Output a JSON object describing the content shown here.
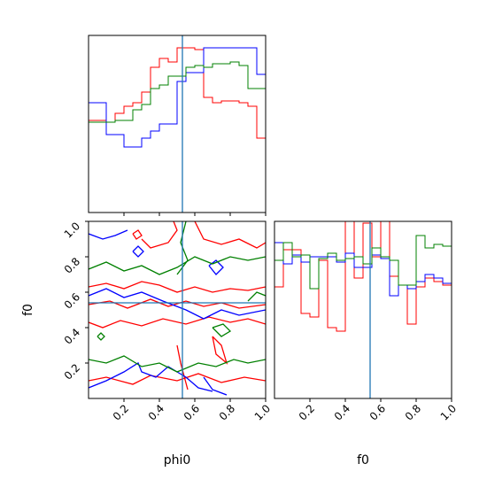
{
  "chart_data": {
    "type": "corner",
    "colors": {
      "red": "#ff0000",
      "blue": "#0000ff",
      "green": "#008000",
      "truth": "#1f77b4"
    },
    "truth": {
      "phi0": 0.53,
      "f0": 0.54
    },
    "labels": {
      "phi0": "phi0",
      "f0": "f0"
    },
    "ticks": {
      "values": [
        0.2,
        0.4,
        0.6,
        0.8,
        1.0
      ],
      "text": [
        "0.2",
        "0.4",
        "0.6",
        "0.8",
        "1.0"
      ]
    },
    "xlim": [
      0,
      1
    ],
    "ylim": [
      0,
      1
    ],
    "hist_phi0": {
      "bin_edges": [
        0,
        0.05,
        0.1,
        0.15,
        0.2,
        0.25,
        0.3,
        0.35,
        0.4,
        0.45,
        0.5,
        0.55,
        0.6,
        0.65,
        0.7,
        0.75,
        0.8,
        0.85,
        0.9,
        0.95,
        1.0
      ],
      "ymax": 1.0,
      "series": [
        {
          "color": "red",
          "values": [
            0.52,
            0.52,
            0.51,
            0.56,
            0.6,
            0.62,
            0.68,
            0.82,
            0.87,
            0.85,
            0.93,
            0.93,
            0.92,
            0.65,
            0.62,
            0.63,
            0.63,
            0.62,
            0.6,
            0.42
          ]
        },
        {
          "color": "blue",
          "values": [
            0.62,
            0.62,
            0.44,
            0.44,
            0.37,
            0.37,
            0.42,
            0.46,
            0.5,
            0.5,
            0.74,
            0.79,
            0.79,
            0.93,
            0.93,
            0.93,
            0.93,
            0.93,
            0.93,
            0.78
          ]
        },
        {
          "color": "green",
          "values": [
            0.51,
            0.51,
            0.51,
            0.52,
            0.52,
            0.58,
            0.61,
            0.7,
            0.72,
            0.77,
            0.77,
            0.82,
            0.83,
            0.82,
            0.84,
            0.84,
            0.85,
            0.83,
            0.7,
            0.7
          ]
        }
      ]
    },
    "hist_f0": {
      "bin_edges": [
        0,
        0.05,
        0.1,
        0.15,
        0.2,
        0.25,
        0.3,
        0.35,
        0.4,
        0.45,
        0.5,
        0.55,
        0.6,
        0.65,
        0.7,
        0.75,
        0.8,
        0.85,
        0.9,
        0.95,
        1.0
      ],
      "ymax": 1.0,
      "series": [
        {
          "color": "red",
          "values": [
            0.63,
            0.84,
            0.84,
            0.48,
            0.46,
            0.78,
            0.4,
            0.38,
            1.0,
            0.68,
            0.99,
            0.8,
            1.0,
            0.69,
            0.64,
            0.42,
            0.63,
            0.68,
            0.66,
            0.64
          ]
        },
        {
          "color": "blue",
          "values": [
            0.88,
            0.76,
            0.81,
            0.77,
            0.8,
            0.8,
            0.8,
            0.77,
            0.82,
            0.74,
            0.74,
            0.81,
            0.79,
            0.58,
            0.64,
            0.62,
            0.66,
            0.7,
            0.68,
            0.65
          ]
        },
        {
          "color": "green",
          "values": [
            0.78,
            0.88,
            0.8,
            0.81,
            0.62,
            0.79,
            0.82,
            0.78,
            0.79,
            0.8,
            0.76,
            0.85,
            0.8,
            0.78,
            0.64,
            0.64,
            0.92,
            0.85,
            0.87,
            0.86
          ]
        }
      ]
    },
    "contour_phi0_f0": {
      "series": [
        {
          "color": "red",
          "paths": [
            [
              [
                0.0,
                0.63
              ],
              [
                0.1,
                0.65
              ],
              [
                0.2,
                0.62
              ],
              [
                0.3,
                0.66
              ],
              [
                0.4,
                0.64
              ],
              [
                0.5,
                0.6
              ],
              [
                0.6,
                0.63
              ],
              [
                0.7,
                0.6
              ],
              [
                0.8,
                0.62
              ],
              [
                0.9,
                0.61
              ],
              [
                1.0,
                0.63
              ]
            ],
            [
              [
                0.0,
                0.53
              ],
              [
                0.12,
                0.55
              ],
              [
                0.22,
                0.51
              ],
              [
                0.35,
                0.56
              ],
              [
                0.45,
                0.52
              ],
              [
                0.55,
                0.55
              ],
              [
                0.65,
                0.52
              ],
              [
                0.75,
                0.54
              ],
              [
                0.85,
                0.51
              ],
              [
                1.0,
                0.53
              ]
            ],
            [
              [
                0.0,
                0.43
              ],
              [
                0.08,
                0.4
              ],
              [
                0.18,
                0.44
              ],
              [
                0.3,
                0.41
              ],
              [
                0.42,
                0.45
              ],
              [
                0.55,
                0.42
              ],
              [
                0.68,
                0.46
              ],
              [
                0.8,
                0.43
              ],
              [
                0.9,
                0.45
              ],
              [
                1.0,
                0.42
              ]
            ],
            [
              [
                0.0,
                0.1
              ],
              [
                0.1,
                0.12
              ],
              [
                0.25,
                0.08
              ],
              [
                0.35,
                0.13
              ],
              [
                0.5,
                0.1
              ],
              [
                0.62,
                0.14
              ],
              [
                0.75,
                0.09
              ],
              [
                0.88,
                0.12
              ],
              [
                1.0,
                0.1
              ]
            ],
            [
              [
                0.6,
                1.0
              ],
              [
                0.65,
                0.9
              ],
              [
                0.75,
                0.87
              ],
              [
                0.85,
                0.9
              ],
              [
                0.95,
                0.85
              ],
              [
                1.0,
                0.88
              ]
            ],
            [
              [
                0.3,
                0.9
              ],
              [
                0.35,
                0.85
              ],
              [
                0.45,
                0.88
              ],
              [
                0.5,
                0.95
              ],
              [
                0.48,
                1.0
              ]
            ],
            [
              [
                0.5,
                0.3
              ],
              [
                0.52,
                0.2
              ],
              [
                0.56,
                0.05
              ]
            ],
            [
              [
                0.7,
                0.35
              ],
              [
                0.72,
                0.25
              ],
              [
                0.78,
                0.2
              ],
              [
                0.75,
                0.3
              ],
              [
                0.7,
                0.35
              ]
            ],
            [
              [
                0.25,
                0.93
              ],
              [
                0.28,
                0.95
              ],
              [
                0.3,
                0.92
              ],
              [
                0.27,
                0.9
              ],
              [
                0.25,
                0.93
              ]
            ]
          ]
        },
        {
          "color": "blue",
          "paths": [
            [
              [
                0.0,
                0.58
              ],
              [
                0.1,
                0.62
              ],
              [
                0.2,
                0.57
              ],
              [
                0.3,
                0.6
              ],
              [
                0.42,
                0.55
              ],
              [
                0.55,
                0.5
              ],
              [
                0.65,
                0.45
              ],
              [
                0.75,
                0.5
              ],
              [
                0.85,
                0.47
              ],
              [
                1.0,
                0.5
              ]
            ],
            [
              [
                0.0,
                0.06
              ],
              [
                0.1,
                0.1
              ],
              [
                0.2,
                0.15
              ],
              [
                0.28,
                0.2
              ],
              [
                0.3,
                0.15
              ],
              [
                0.38,
                0.12
              ],
              [
                0.45,
                0.18
              ],
              [
                0.55,
                0.12
              ],
              [
                0.62,
                0.06
              ],
              [
                0.7,
                0.04
              ]
            ],
            [
              [
                0.0,
                0.93
              ],
              [
                0.08,
                0.9
              ],
              [
                0.15,
                0.92
              ],
              [
                0.22,
                0.95
              ]
            ],
            [
              [
                0.65,
                0.12
              ],
              [
                0.7,
                0.05
              ],
              [
                0.78,
                0.02
              ]
            ],
            [
              [
                0.68,
                0.75
              ],
              [
                0.72,
                0.7
              ],
              [
                0.76,
                0.74
              ],
              [
                0.72,
                0.78
              ],
              [
                0.68,
                0.75
              ]
            ],
            [
              [
                0.25,
                0.83
              ],
              [
                0.28,
                0.86
              ],
              [
                0.31,
                0.83
              ],
              [
                0.28,
                0.8
              ],
              [
                0.25,
                0.83
              ]
            ]
          ]
        },
        {
          "color": "green",
          "paths": [
            [
              [
                0.0,
                0.73
              ],
              [
                0.1,
                0.77
              ],
              [
                0.2,
                0.72
              ],
              [
                0.3,
                0.75
              ],
              [
                0.4,
                0.7
              ],
              [
                0.5,
                0.74
              ],
              [
                0.6,
                0.8
              ],
              [
                0.7,
                0.76
              ],
              [
                0.8,
                0.8
              ],
              [
                0.9,
                0.78
              ],
              [
                1.0,
                0.8
              ]
            ],
            [
              [
                0.0,
                0.22
              ],
              [
                0.1,
                0.2
              ],
              [
                0.2,
                0.24
              ],
              [
                0.3,
                0.18
              ],
              [
                0.4,
                0.2
              ],
              [
                0.5,
                0.15
              ],
              [
                0.62,
                0.2
              ],
              [
                0.72,
                0.18
              ],
              [
                0.82,
                0.22
              ],
              [
                0.9,
                0.2
              ],
              [
                1.0,
                0.22
              ]
            ],
            [
              [
                0.55,
                1.0
              ],
              [
                0.52,
                0.88
              ],
              [
                0.56,
                0.78
              ],
              [
                0.5,
                0.7
              ]
            ],
            [
              [
                0.7,
                0.4
              ],
              [
                0.75,
                0.35
              ],
              [
                0.8,
                0.38
              ],
              [
                0.76,
                0.42
              ],
              [
                0.7,
                0.4
              ]
            ],
            [
              [
                0.05,
                0.35
              ],
              [
                0.07,
                0.33
              ],
              [
                0.09,
                0.35
              ],
              [
                0.07,
                0.37
              ],
              [
                0.05,
                0.35
              ]
            ],
            [
              [
                0.9,
                0.55
              ],
              [
                0.95,
                0.6
              ],
              [
                1.0,
                0.58
              ]
            ]
          ]
        }
      ]
    }
  }
}
